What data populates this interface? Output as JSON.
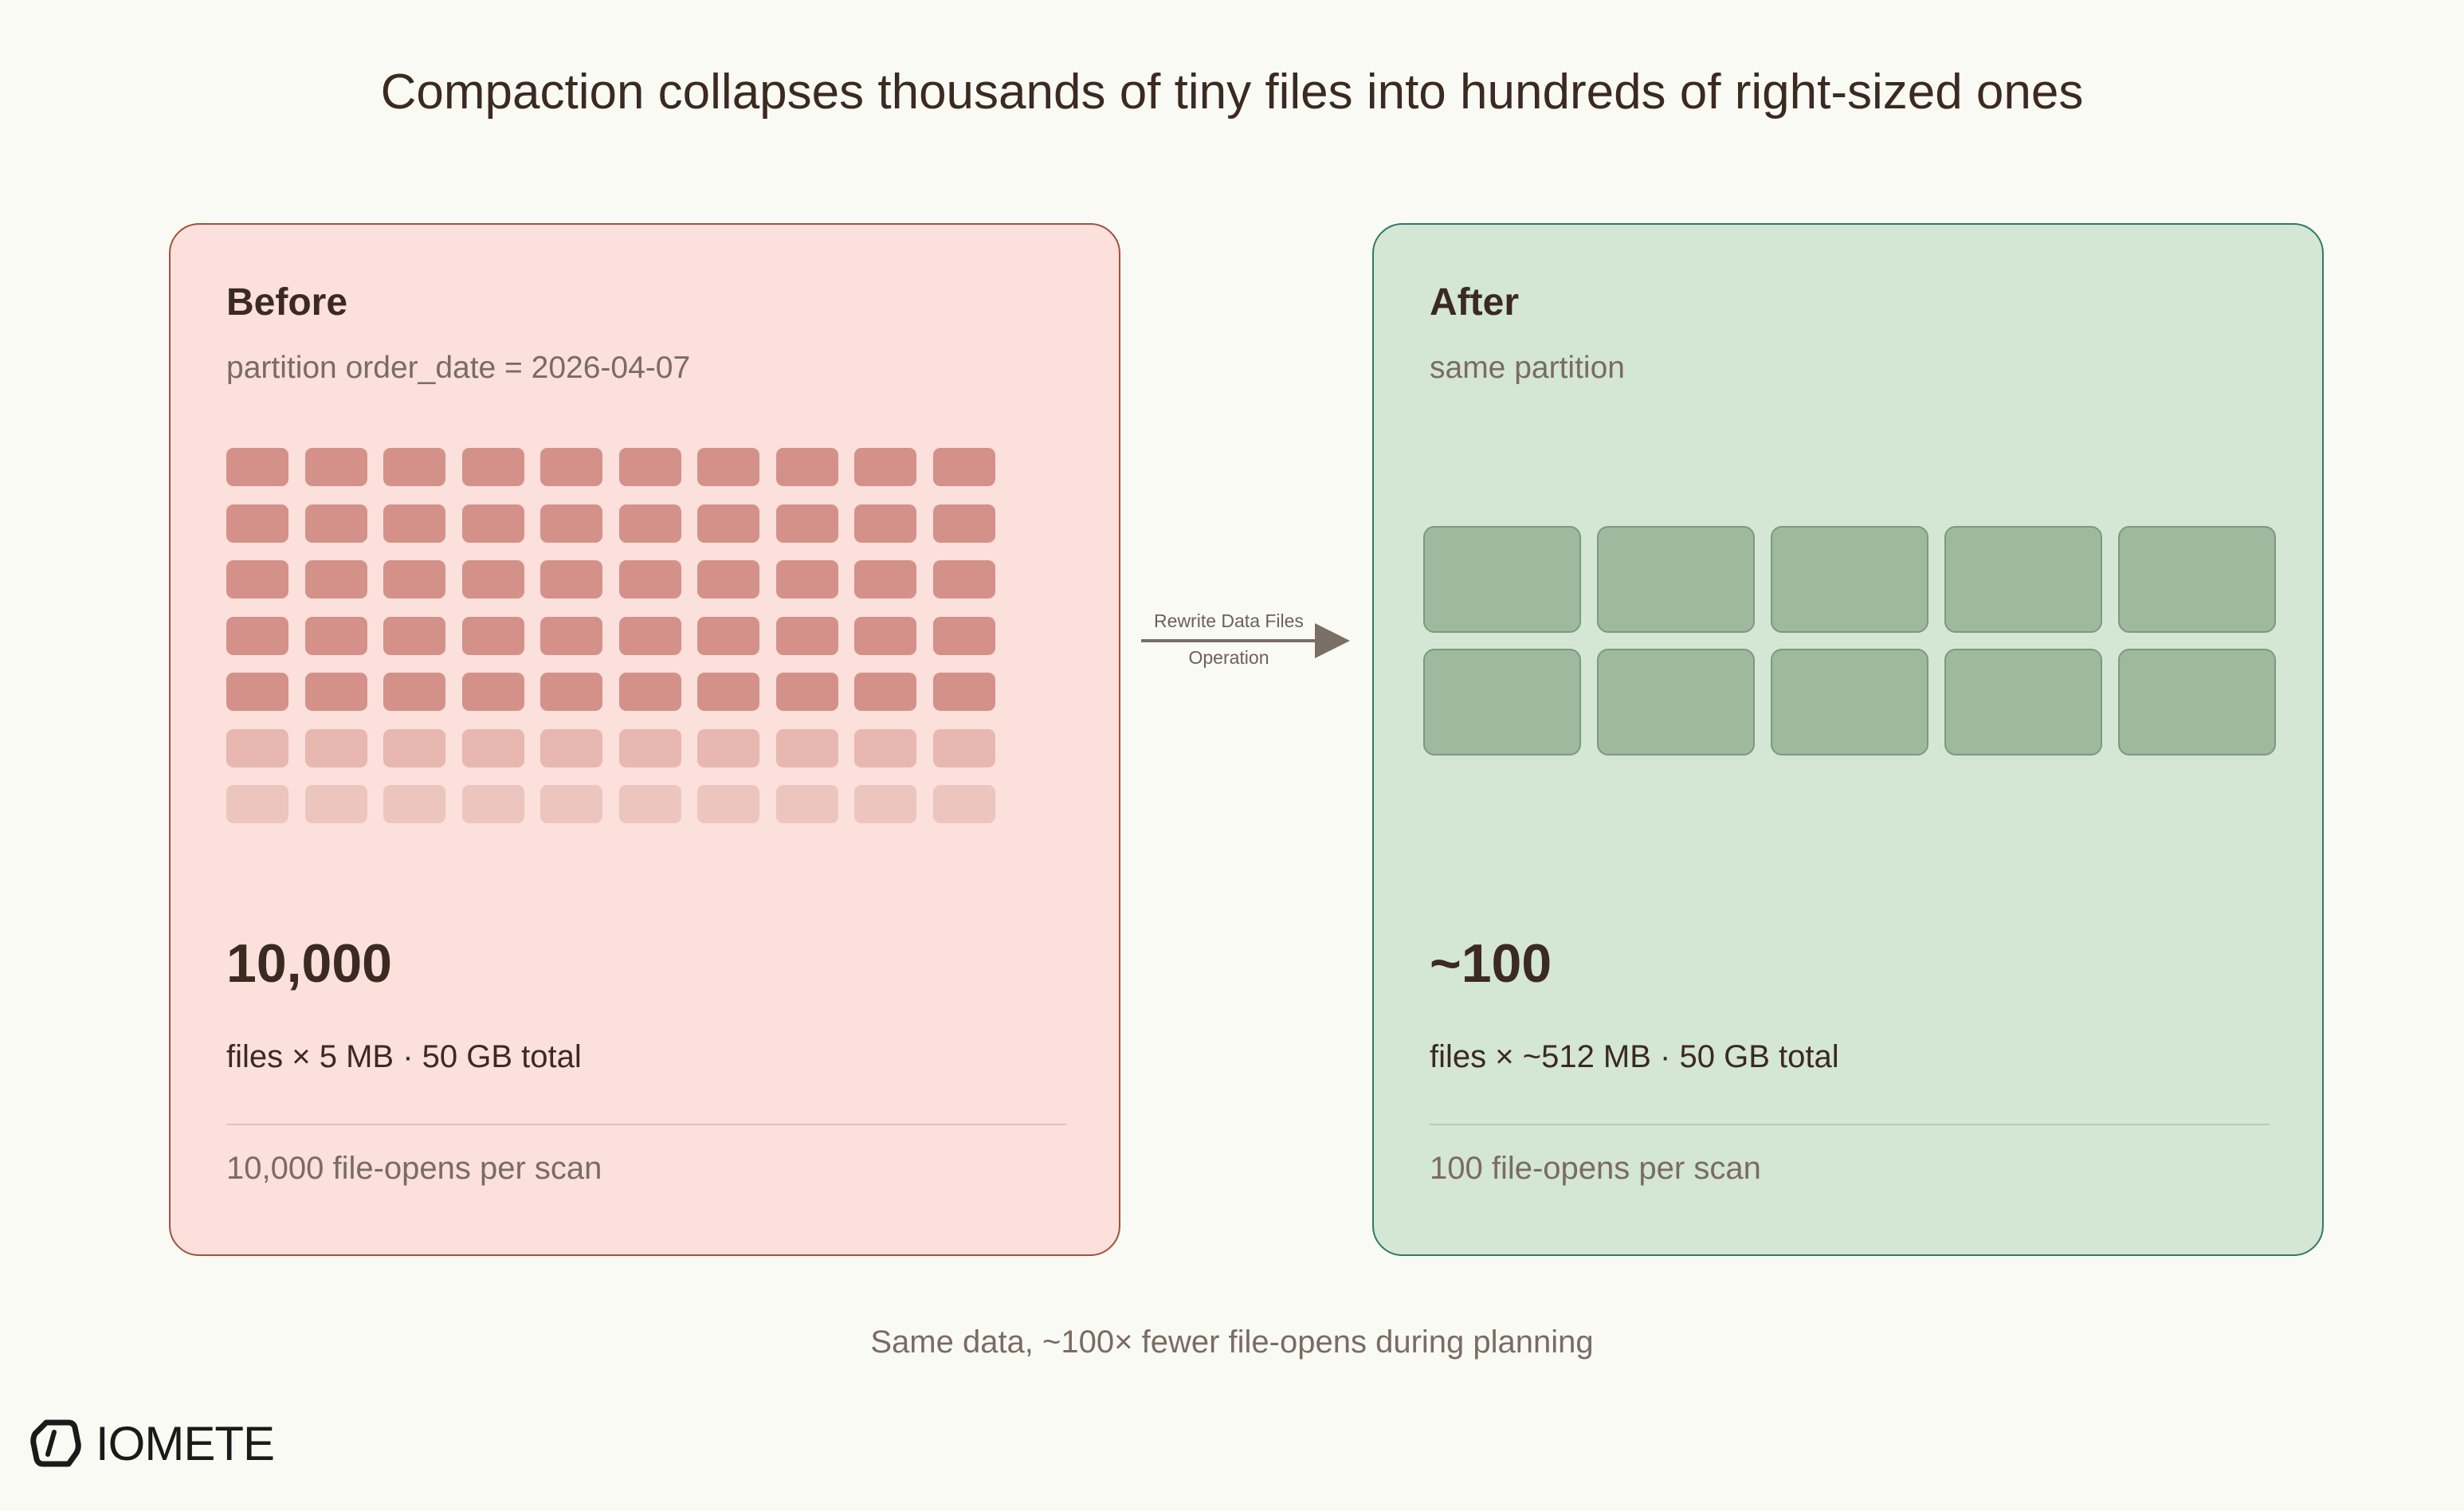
{
  "title": "Compaction collapses thousands of tiny files into hundreds of right-sized ones",
  "before": {
    "heading": "Before",
    "subtitle": "partition order_date = 2026-04-07",
    "count": "10,000",
    "detail": "files × 5 MB · 50 GB total",
    "footnote": "10,000 file-opens per scan",
    "tile_rows": 7,
    "tile_cols": 10,
    "faded_rows": 2,
    "color_bg": "#fbe0dc",
    "color_border": "#a0523f",
    "color_tile": "#d49189"
  },
  "arrow": {
    "label_line1": "Rewrite Data Files",
    "label_line2": "Operation"
  },
  "after": {
    "heading": "After",
    "subtitle": "same partition",
    "count": "~100",
    "detail": "files × ~512 MB · 50 GB total",
    "footnote": "100 file-opens per scan",
    "tile_rows": 2,
    "tile_cols": 5,
    "color_bg": "#d4e6d4",
    "color_border": "#2e7a66",
    "color_tile": "#9eb99e"
  },
  "caption": "Same data, ~100× fewer file-opens during planning",
  "logo": {
    "icon": "iomete-hexagon-icon",
    "text": "IOMETE"
  }
}
